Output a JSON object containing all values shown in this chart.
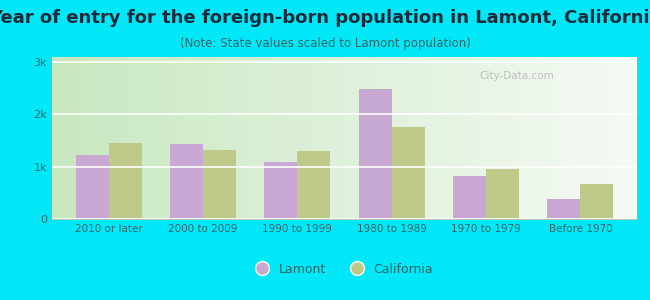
{
  "title": "Year of entry for the foreign-born population in Lamont, California",
  "subtitle": "(Note: State values scaled to Lamont population)",
  "categories": [
    "2010 or later",
    "2000 to 2009",
    "1990 to 1999",
    "1980 to 1989",
    "1970 to 1979",
    "Before 1970"
  ],
  "lamont_values": [
    1220,
    1430,
    1100,
    2480,
    830,
    380
  ],
  "california_values": [
    1450,
    1320,
    1310,
    1770,
    950,
    670
  ],
  "lamont_color": "#c9a8d4",
  "california_color": "#bec98a",
  "background_outer": "#00e8f8",
  "background_inner_left": "#c8e8c8",
  "background_inner_right": "#f0f8f0",
  "ylim": [
    0,
    3100
  ],
  "yticks": [
    0,
    1000,
    2000,
    3000
  ],
  "ytick_labels": [
    "0",
    "1k",
    "2k",
    "3k"
  ],
  "bar_width": 0.35,
  "title_fontsize": 13,
  "subtitle_fontsize": 8.5,
  "title_color": "#1a2a3a",
  "subtitle_color": "#336666",
  "tick_color": "#336666",
  "legend_lamont": "Lamont",
  "legend_california": "California"
}
